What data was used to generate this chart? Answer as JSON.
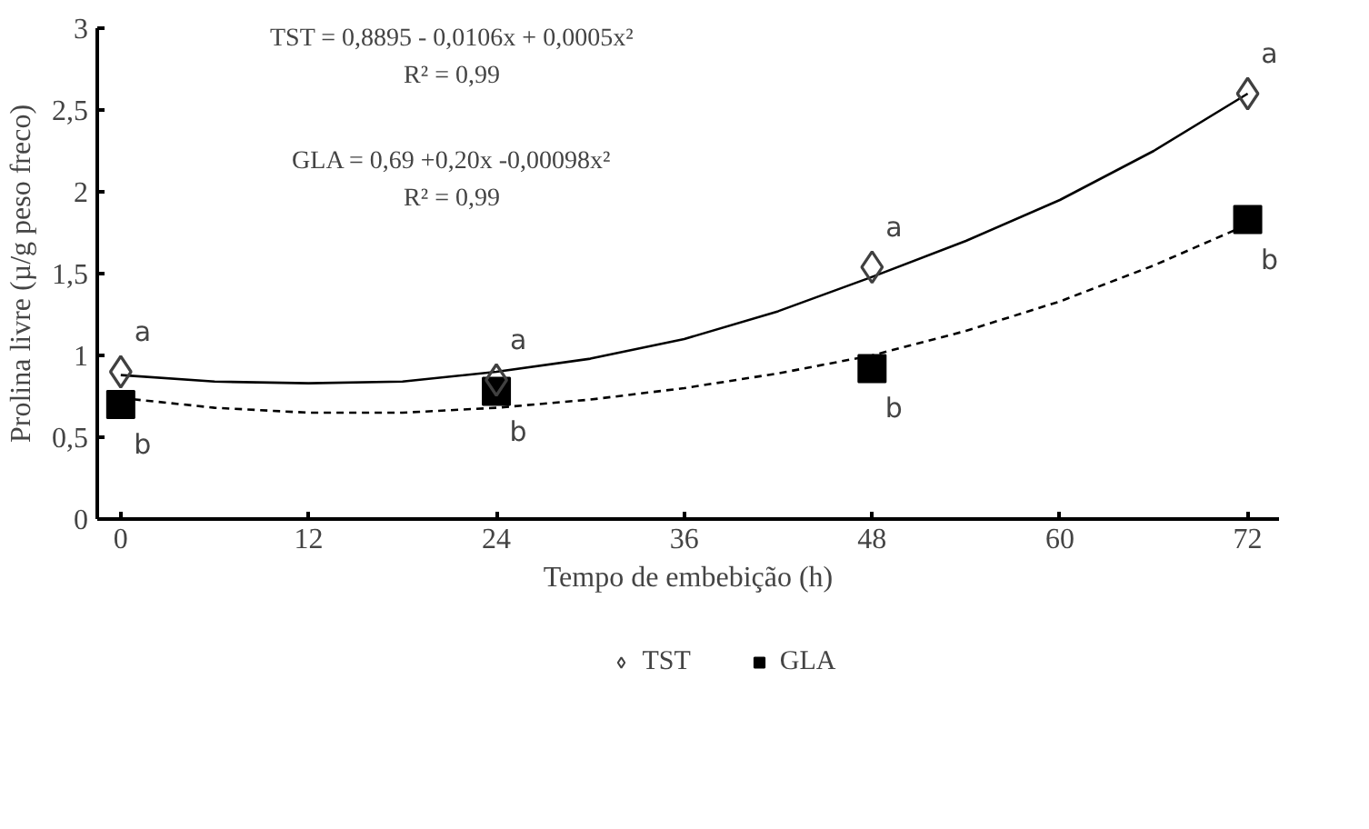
{
  "chart_data": {
    "type": "scatter",
    "xlabel": "Tempo de embebição (h)",
    "ylabel": "Prolina livre (µ/g peso freco)",
    "x": [
      0,
      24,
      48,
      72
    ],
    "series": [
      {
        "name": "TST",
        "color": "#404040",
        "marker": "diamond",
        "values": [
          0.9,
          0.85,
          1.54,
          2.6
        ]
      },
      {
        "name": "GLA",
        "color": "#000000",
        "marker": "square",
        "values": [
          0.7,
          0.78,
          0.92,
          1.83
        ]
      },
      {
        "type": "line",
        "color": "#000000",
        "line_style": "solid",
        "x": [
          0,
          6,
          12,
          18,
          24,
          30,
          36,
          42,
          48,
          54,
          60,
          66,
          72
        ],
        "values": [
          0.88,
          0.84,
          0.83,
          0.84,
          0.9,
          0.98,
          1.1,
          1.27,
          1.48,
          1.7,
          1.95,
          2.25,
          2.6
        ]
      },
      {
        "type": "line",
        "color": "#000000",
        "line_style": "dashed",
        "x": [
          0,
          6,
          12,
          18,
          24,
          30,
          36,
          42,
          48,
          54,
          60,
          66,
          72
        ],
        "values": [
          0.74,
          0.68,
          0.65,
          0.65,
          0.68,
          0.73,
          0.8,
          0.89,
          1.0,
          1.15,
          1.33,
          1.55,
          1.8
        ]
      }
    ],
    "xlim": [
      -1.5,
      74
    ],
    "xticks": [
      0,
      12,
      24,
      36,
      48,
      60,
      72
    ],
    "ylim": [
      0,
      3
    ],
    "yticks": [
      0,
      {
        "value": 0.5,
        "label": "0,5"
      },
      1,
      {
        "value": 1.5,
        "label": "1,5"
      },
      2,
      {
        "value": 2.5,
        "label": "2,5"
      },
      3
    ],
    "grid": false,
    "legend": "bottom",
    "annotations": [
      "TST = 0,8895 - 0,0106x + 0,0005x²",
      "R² = 0,99",
      "GLA = 0,69 +0,20x -0,00098x²",
      "R² = 0,99",
      {
        "text": "a",
        "x": 0,
        "y": 0.9
      },
      {
        "text": "b",
        "x": 0,
        "y": 0.7
      },
      {
        "text": "a",
        "x": 24,
        "y": 0.85
      },
      {
        "text": "b",
        "x": 24,
        "y": 0.78
      },
      {
        "text": "a",
        "x": 48,
        "y": 1.54
      },
      {
        "text": "b",
        "x": 48,
        "y": 0.92
      },
      {
        "text": "a",
        "x": 72,
        "y": 2.6
      },
      {
        "text": "b",
        "x": 72,
        "y": 1.83
      }
    ]
  }
}
